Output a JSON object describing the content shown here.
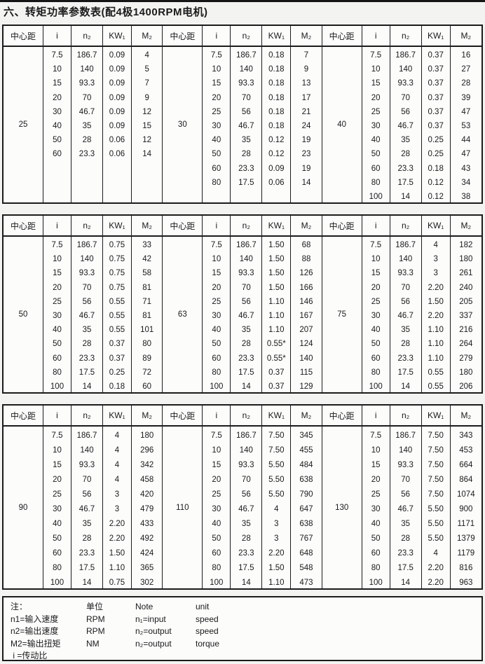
{
  "page": {
    "title": "六、转矩功率参数表(配4极1400RPM电机)"
  },
  "headers": {
    "center_distance": "中心距",
    "ratio": "i",
    "n2": "n₂",
    "kw1": "KW₁",
    "m2": "M₂"
  },
  "tables": [
    {
      "groups": [
        {
          "center_distance": "25",
          "rows": [
            [
              "7.5",
              "186.7",
              "0.09",
              "4"
            ],
            [
              "10",
              "140",
              "0.09",
              "5"
            ],
            [
              "15",
              "93.3",
              "0.09",
              "7"
            ],
            [
              "20",
              "70",
              "0.09",
              "9"
            ],
            [
              "30",
              "46.7",
              "0.09",
              "12"
            ],
            [
              "40",
              "35",
              "0.09",
              "15"
            ],
            [
              "50",
              "28",
              "0.06",
              "12"
            ],
            [
              "60",
              "23.3",
              "0.06",
              "14"
            ]
          ]
        },
        {
          "center_distance": "30",
          "rows": [
            [
              "7.5",
              "186.7",
              "0.18",
              "7"
            ],
            [
              "10",
              "140",
              "0.18",
              "9"
            ],
            [
              "15",
              "93.3",
              "0.18",
              "13"
            ],
            [
              "20",
              "70",
              "0.18",
              "17"
            ],
            [
              "25",
              "56",
              "0.18",
              "21"
            ],
            [
              "30",
              "46.7",
              "0.18",
              "24"
            ],
            [
              "40",
              "35",
              "0.12",
              "19"
            ],
            [
              "50",
              "28",
              "0.12",
              "23"
            ],
            [
              "60",
              "23.3",
              "0.09",
              "19"
            ],
            [
              "80",
              "17.5",
              "0.06",
              "14"
            ]
          ]
        },
        {
          "center_distance": "40",
          "rows": [
            [
              "7.5",
              "186.7",
              "0.37",
              "16"
            ],
            [
              "10",
              "140",
              "0.37",
              "27"
            ],
            [
              "15",
              "93.3",
              "0.37",
              "28"
            ],
            [
              "20",
              "70",
              "0.37",
              "39"
            ],
            [
              "25",
              "56",
              "0.37",
              "47"
            ],
            [
              "30",
              "46.7",
              "0.37",
              "53"
            ],
            [
              "40",
              "35",
              "0.25",
              "44"
            ],
            [
              "50",
              "28",
              "0.25",
              "47"
            ],
            [
              "60",
              "23.3",
              "0.18",
              "43"
            ],
            [
              "80",
              "17.5",
              "0.12",
              "34"
            ],
            [
              "100",
              "14",
              "0.12",
              "38"
            ]
          ]
        }
      ]
    },
    {
      "groups": [
        {
          "center_distance": "50",
          "rows": [
            [
              "7.5",
              "186.7",
              "0.75",
              "33"
            ],
            [
              "10",
              "140",
              "0.75",
              "42"
            ],
            [
              "15",
              "93.3",
              "0.75",
              "58"
            ],
            [
              "20",
              "70",
              "0.75",
              "81"
            ],
            [
              "25",
              "56",
              "0.55",
              "71"
            ],
            [
              "30",
              "46.7",
              "0.55",
              "81"
            ],
            [
              "40",
              "35",
              "0.55",
              "101"
            ],
            [
              "50",
              "28",
              "0.37",
              "80"
            ],
            [
              "60",
              "23.3",
              "0.37",
              "89"
            ],
            [
              "80",
              "17.5",
              "0.25",
              "72"
            ],
            [
              "100",
              "14",
              "0.18",
              "60"
            ]
          ]
        },
        {
          "center_distance": "63",
          "rows": [
            [
              "7.5",
              "186.7",
              "1.50",
              "68"
            ],
            [
              "10",
              "140",
              "1.50",
              "88"
            ],
            [
              "15",
              "93.3",
              "1.50",
              "126"
            ],
            [
              "20",
              "70",
              "1.50",
              "166"
            ],
            [
              "25",
              "56",
              "1.10",
              "146"
            ],
            [
              "30",
              "46.7",
              "1.10",
              "167"
            ],
            [
              "40",
              "35",
              "1.10",
              "207"
            ],
            [
              "50",
              "28",
              "0.55*",
              "124"
            ],
            [
              "60",
              "23.3",
              "0.55*",
              "140"
            ],
            [
              "80",
              "17.5",
              "0.37",
              "115"
            ],
            [
              "100",
              "14",
              "0.37",
              "129"
            ]
          ]
        },
        {
          "center_distance": "75",
          "rows": [
            [
              "7.5",
              "186.7",
              "4",
              "182"
            ],
            [
              "10",
              "140",
              "3",
              "180"
            ],
            [
              "15",
              "93.3",
              "3",
              "261"
            ],
            [
              "20",
              "70",
              "2.20",
              "240"
            ],
            [
              "25",
              "56",
              "1.50",
              "205"
            ],
            [
              "30",
              "46.7",
              "2.20",
              "337"
            ],
            [
              "40",
              "35",
              "1.10",
              "216"
            ],
            [
              "50",
              "28",
              "1.10",
              "264"
            ],
            [
              "60",
              "23.3",
              "1.10",
              "279"
            ],
            [
              "80",
              "17.5",
              "0.55",
              "180"
            ],
            [
              "100",
              "14",
              "0.55",
              "206"
            ]
          ]
        }
      ]
    },
    {
      "groups": [
        {
          "center_distance": "90",
          "rows": [
            [
              "7.5",
              "186.7",
              "4",
              "180"
            ],
            [
              "10",
              "140",
              "4",
              "296"
            ],
            [
              "15",
              "93.3",
              "4",
              "342"
            ],
            [
              "20",
              "70",
              "4",
              "458"
            ],
            [
              "25",
              "56",
              "3",
              "420"
            ],
            [
              "30",
              "46.7",
              "3",
              "479"
            ],
            [
              "40",
              "35",
              "2.20",
              "433"
            ],
            [
              "50",
              "28",
              "2.20",
              "492"
            ],
            [
              "60",
              "23.3",
              "1.50",
              "424"
            ],
            [
              "80",
              "17.5",
              "1.10",
              "365"
            ],
            [
              "100",
              "14",
              "0.75",
              "302"
            ]
          ]
        },
        {
          "center_distance": "110",
          "rows": [
            [
              "7.5",
              "186.7",
              "7.50",
              "345"
            ],
            [
              "10",
              "140",
              "7.50",
              "455"
            ],
            [
              "15",
              "93.3",
              "5.50",
              "484"
            ],
            [
              "20",
              "70",
              "5.50",
              "638"
            ],
            [
              "25",
              "56",
              "5.50",
              "790"
            ],
            [
              "30",
              "46.7",
              "4",
              "647"
            ],
            [
              "40",
              "35",
              "3",
              "638"
            ],
            [
              "50",
              "28",
              "3",
              "767"
            ],
            [
              "60",
              "23.3",
              "2.20",
              "648"
            ],
            [
              "80",
              "17.5",
              "1.50",
              "548"
            ],
            [
              "100",
              "14",
              "1.10",
              "473"
            ]
          ]
        },
        {
          "center_distance": "130",
          "rows": [
            [
              "7.5",
              "186.7",
              "7.50",
              "343"
            ],
            [
              "10",
              "140",
              "7.50",
              "453"
            ],
            [
              "15",
              "93.3",
              "7.50",
              "664"
            ],
            [
              "20",
              "70",
              "7.50",
              "864"
            ],
            [
              "25",
              "56",
              "7.50",
              "1074"
            ],
            [
              "30",
              "46.7",
              "5.50",
              "900"
            ],
            [
              "40",
              "35",
              "5.50",
              "1171"
            ],
            [
              "50",
              "28",
              "5.50",
              "1379"
            ],
            [
              "60",
              "23.3",
              "4",
              "1179"
            ],
            [
              "80",
              "17.5",
              "2.20",
              "816"
            ],
            [
              "100",
              "14",
              "2.20",
              "963"
            ]
          ]
        }
      ]
    }
  ],
  "note": {
    "rows": [
      [
        "注：",
        "单位",
        "Note",
        "unit"
      ],
      [
        "n1=输入速度",
        "RPM",
        "n₁=input",
        "speed"
      ],
      [
        "n2=输出速度",
        "RPM",
        "n₂=output",
        "speed"
      ],
      [
        "M2=输出扭矩",
        "NM",
        "n₂=output",
        "torque"
      ],
      [
        " i =传动比",
        "",
        "",
        ""
      ]
    ]
  },
  "colors": {
    "page_background": "#f3f3f1",
    "table_background": "#fcfcfb",
    "border": "#1b1b1b",
    "text": "#1a1a1a"
  }
}
